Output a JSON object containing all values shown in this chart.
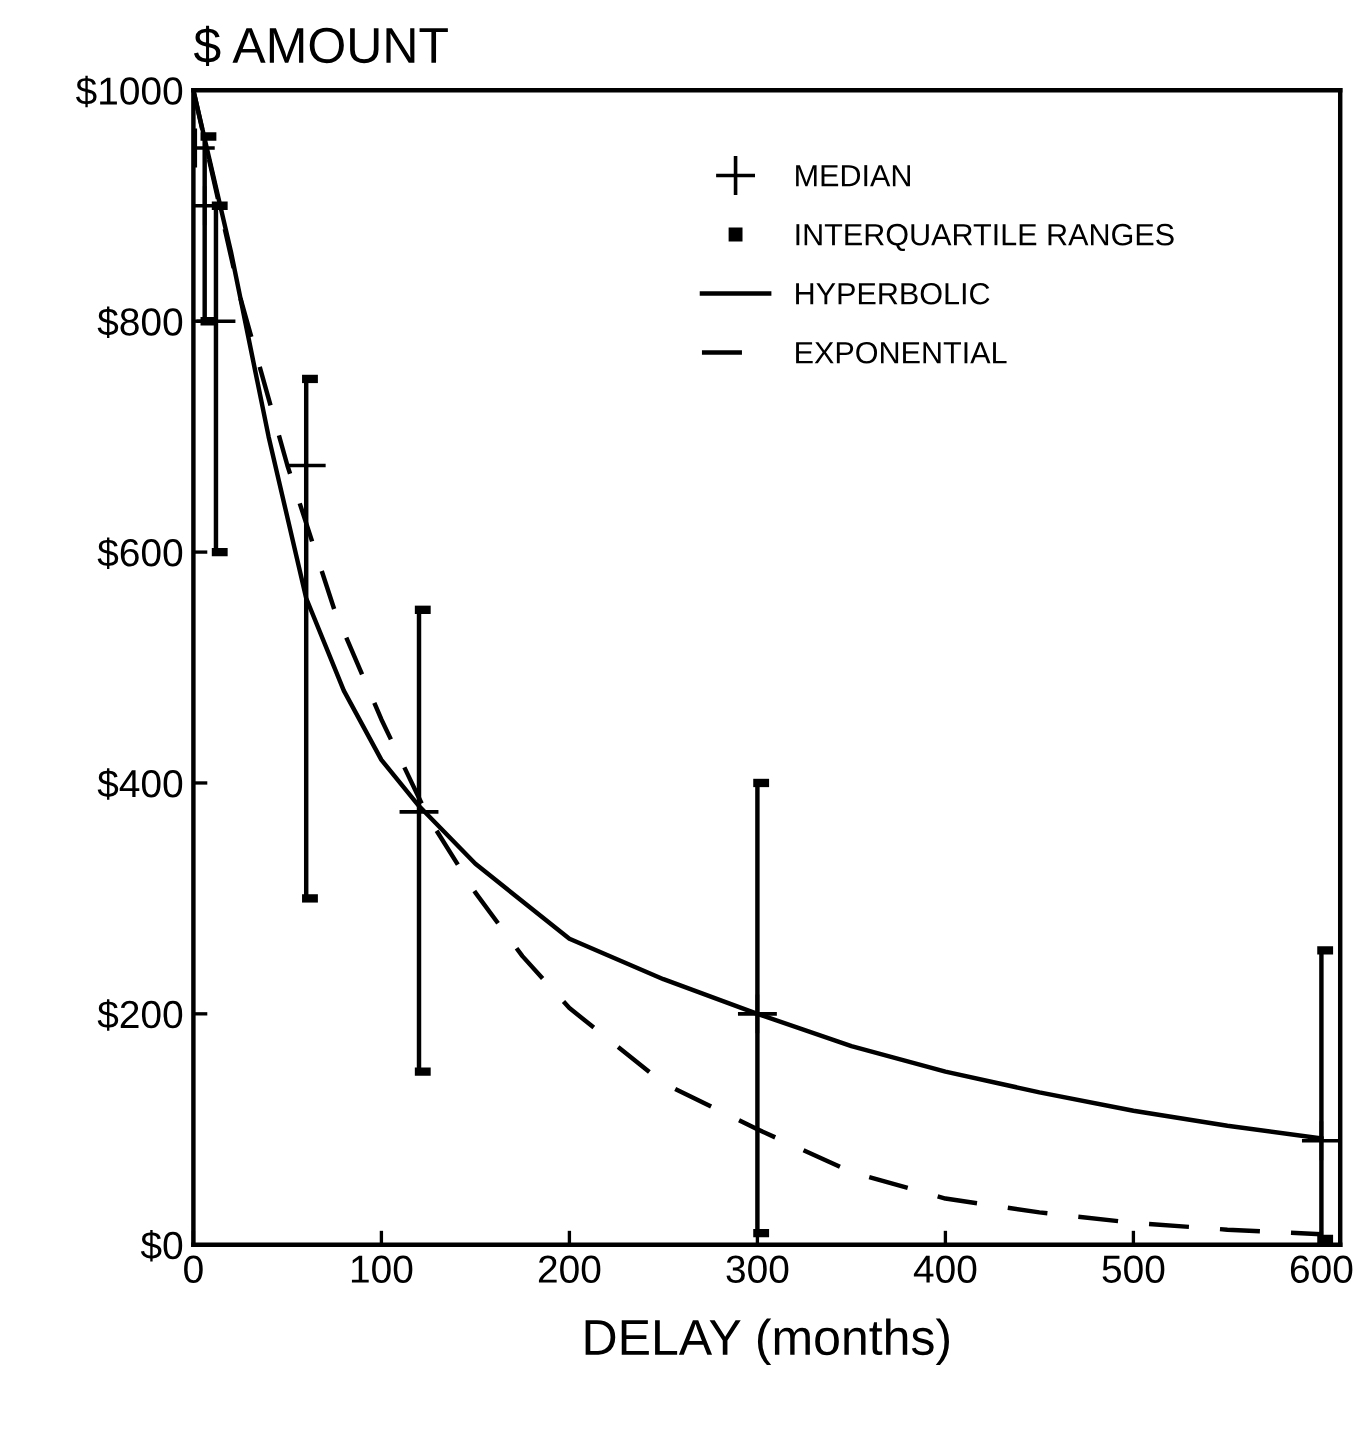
{
  "chart_data": {
    "type": "scatter",
    "xlabel": "DELAY (months)",
    "ylabel": "$ AMOUNT",
    "xlim": [
      0,
      610
    ],
    "xticks": [
      0,
      100,
      200,
      300,
      400,
      500,
      600
    ],
    "ylim": [
      0,
      1000
    ],
    "yticks": [
      {
        "value": 0,
        "label": "$0"
      },
      {
        "value": 200,
        "label": "$200"
      },
      {
        "value": 400,
        "label": "$400"
      },
      {
        "value": 600,
        "label": "$600"
      },
      {
        "value": 800,
        "label": "$800"
      },
      {
        "value": 1000,
        "label": "$1000"
      }
    ],
    "grid": false,
    "legend": "top right",
    "annotations": [
      "INTERQUARTILE RANGES"
    ],
    "series": [
      {
        "name": "MEDIAN",
        "marker": "cross",
        "color": "#000000",
        "x": [
          1,
          6,
          12,
          60,
          120,
          300,
          600
        ],
        "values": [
          950,
          900,
          800,
          675,
          375,
          200,
          90
        ],
        "errors": [
          null,
          [
            800,
            960
          ],
          [
            600,
            900
          ],
          [
            300,
            750
          ],
          [
            150,
            550
          ],
          [
            10,
            400
          ],
          [
            5,
            255
          ]
        ]
      },
      {
        "name": "HYPERBOLIC",
        "type": "line",
        "line_style": "solid",
        "color": "#000000",
        "x": [
          0,
          10,
          20,
          40,
          60,
          80,
          100,
          120,
          150,
          200,
          250,
          300,
          350,
          400,
          450,
          500,
          550,
          600
        ],
        "values": [
          1000,
          930,
          860,
          700,
          560,
          480,
          420,
          380,
          330,
          265,
          230,
          200,
          172,
          150,
          132,
          116,
          103,
          92
        ]
      },
      {
        "name": "EXPONENTIAL",
        "type": "line",
        "line_style": "dashed",
        "color": "#000000",
        "x": [
          0,
          25,
          50,
          75,
          100,
          125,
          150,
          175,
          200,
          250,
          300,
          350,
          400,
          450,
          500,
          550,
          600
        ],
        "values": [
          1000,
          820,
          675,
          550,
          455,
          370,
          305,
          250,
          205,
          140,
          100,
          63,
          40,
          28,
          19,
          13,
          9
        ]
      }
    ]
  }
}
